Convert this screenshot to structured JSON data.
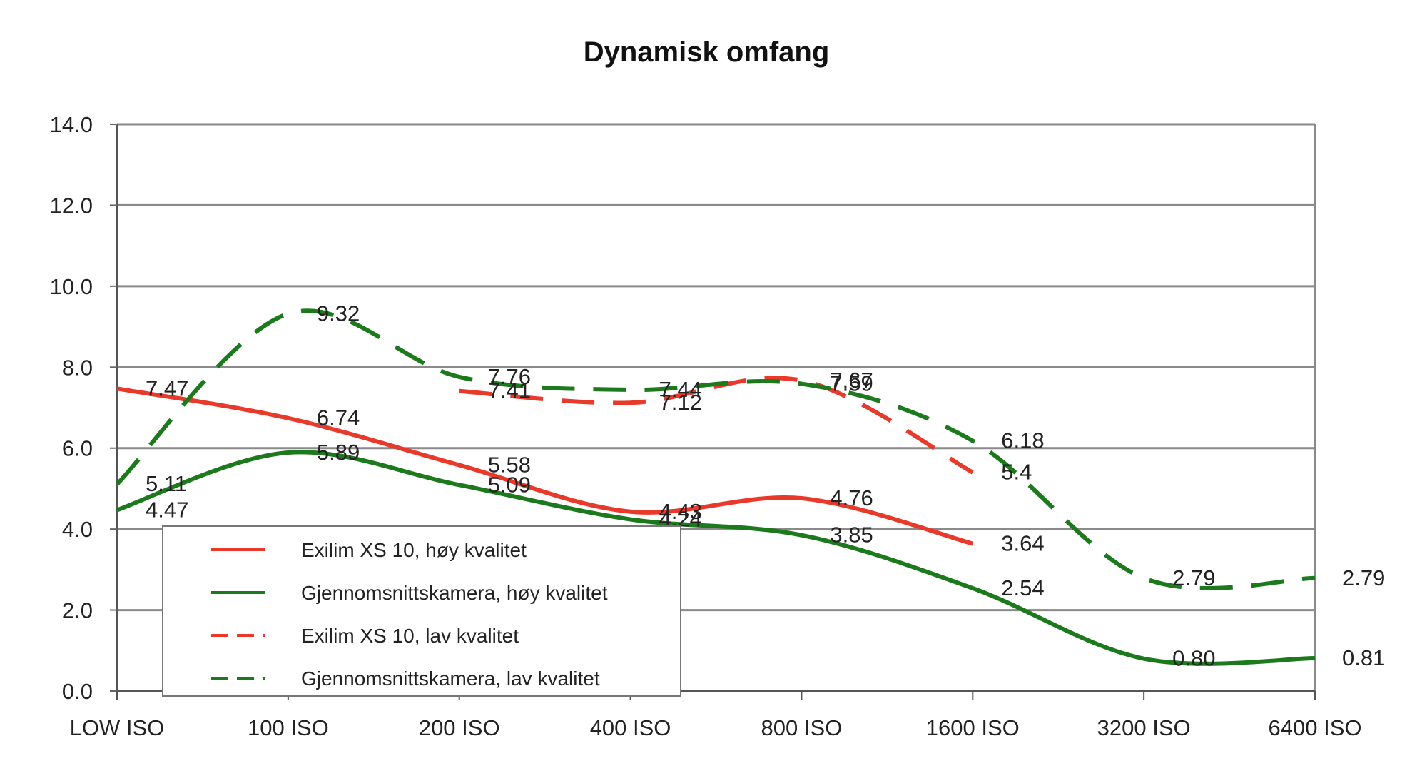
{
  "chart_data": {
    "type": "line",
    "title": "Dynamisk omfang",
    "xlabel": "",
    "ylabel": "",
    "categories": [
      "LOW ISO",
      "100 ISO",
      "200 ISO",
      "400 ISO",
      "800 ISO",
      "1600 ISO",
      "3200 ISO",
      "6400 ISO"
    ],
    "ylim": [
      0,
      14
    ],
    "yticks": [
      "0.0",
      "2.0",
      "4.0",
      "6.0",
      "8.0",
      "10.0",
      "12.0",
      "14.0"
    ],
    "grid": true,
    "legend_position": "bottom-left",
    "series": [
      {
        "name": "Exilim XS 10, høy kvalitet",
        "color": "#e8392b",
        "dash": "solid",
        "values": [
          7.47,
          6.74,
          5.58,
          4.43,
          4.76,
          3.64,
          null,
          null
        ],
        "labels": [
          "7.47",
          "6.74",
          "5.58",
          "4.43",
          "4.76",
          "3.64",
          "",
          ""
        ]
      },
      {
        "name": "Gjennomsnittskamera, høy kvalitet",
        "color": "#1c7a1c",
        "dash": "solid",
        "values": [
          4.47,
          5.89,
          5.09,
          4.24,
          3.85,
          2.54,
          0.8,
          0.81
        ],
        "labels": [
          "4.47",
          "5.89",
          "5.09",
          "4.24",
          "3.85",
          "2.54",
          "0.80",
          "0.81"
        ]
      },
      {
        "name": "Exilim XS 10, lav kvalitet",
        "color": "#e8392b",
        "dash": "dashed",
        "values": [
          null,
          null,
          7.41,
          7.12,
          7.67,
          5.4,
          null,
          null
        ],
        "labels": [
          "",
          "",
          "7.41",
          "7.12",
          "7.67",
          "5.4",
          "",
          ""
        ]
      },
      {
        "name": "Gjennomsnittskamera, lav kvalitet",
        "color": "#1c7a1c",
        "dash": "dashed",
        "values": [
          5.11,
          9.32,
          7.76,
          7.44,
          7.59,
          6.18,
          2.79,
          2.79
        ],
        "labels": [
          "5.11",
          "9.32",
          "7.76",
          "7.44",
          "7.59",
          "6.18",
          "2.79",
          "2.79"
        ]
      }
    ]
  }
}
